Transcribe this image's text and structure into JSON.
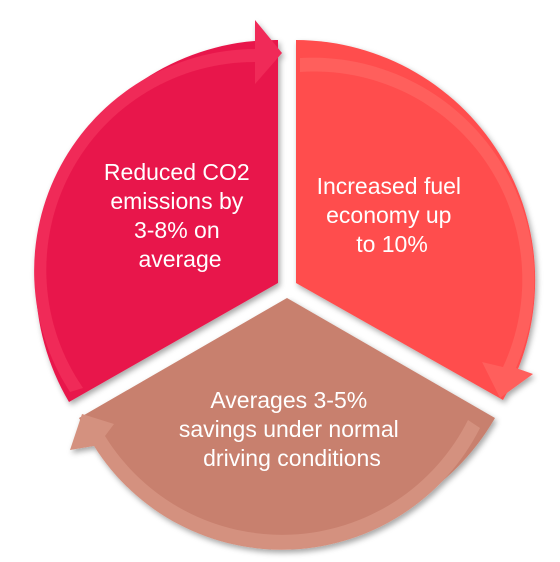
{
  "segments": [
    {
      "id": "left",
      "lines": [
        "Reduced CO2",
        "emissions by",
        "3-8% on",
        "average"
      ],
      "fill": "#e8194b",
      "arrow_fill": "#f02a58"
    },
    {
      "id": "right",
      "lines": [
        "Increased fuel",
        "economy up",
        "to 10%"
      ],
      "fill": "#ff4d4d",
      "arrow_fill": "#ff5e5c"
    },
    {
      "id": "bottom",
      "lines": [
        "Averages 3-5%",
        "savings under normal",
        "driving conditions"
      ],
      "fill": "#c8806e",
      "arrow_fill": "#d4917f"
    }
  ]
}
